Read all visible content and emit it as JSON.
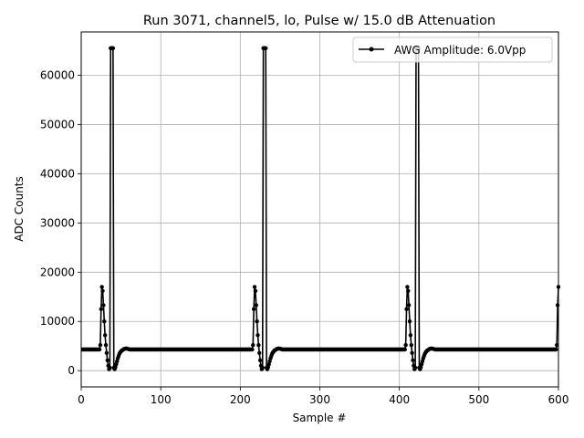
{
  "chart_data": {
    "type": "line",
    "title": "Run 3071, channel5, lo, Pulse w/ 15.0 dB Attenuation",
    "xlabel": "Sample #",
    "ylabel": "ADC Counts",
    "xlim": [
      0,
      600
    ],
    "ylim": [
      -3300,
      68800
    ],
    "xticks": [
      0,
      100,
      200,
      300,
      400,
      500,
      600
    ],
    "yticks": [
      0,
      10000,
      20000,
      30000,
      40000,
      50000,
      60000
    ],
    "grid": true,
    "legend_position": "top-right",
    "series": [
      {
        "name": "AWG Amplitude: 6.0Vpp",
        "color": "#000000",
        "marker": "circle",
        "baseline": 4300,
        "period": 192,
        "segments": [
          {
            "from": 0,
            "to": 23,
            "value": 4300
          },
          {
            "from": 216,
            "to": 215,
            "value": 4300
          }
        ],
        "pulse_shape": {
          "offset_start": 24,
          "values": [
            5200,
            12500,
            17000,
            16200,
            13300,
            10000,
            7200,
            5200,
            3600,
            2100,
            1000,
            300,
            600,
            65500,
            65500,
            65500,
            65500,
            600,
            300,
            700,
            1300,
            1900,
            2500,
            3000,
            3400,
            3700,
            3900,
            4100,
            4200,
            4300,
            4400,
            4450,
            4500,
            4500,
            4450,
            4400,
            4350,
            4300
          ]
        },
        "pulse_starts": [
          24,
          216,
          408
        ],
        "tail": {
          "from": 600,
          "values": [
            13300,
            17000
          ]
        },
        "tail_start": 599,
        "tail_values": [
          5200,
          13300,
          17000
        ]
      }
    ]
  }
}
